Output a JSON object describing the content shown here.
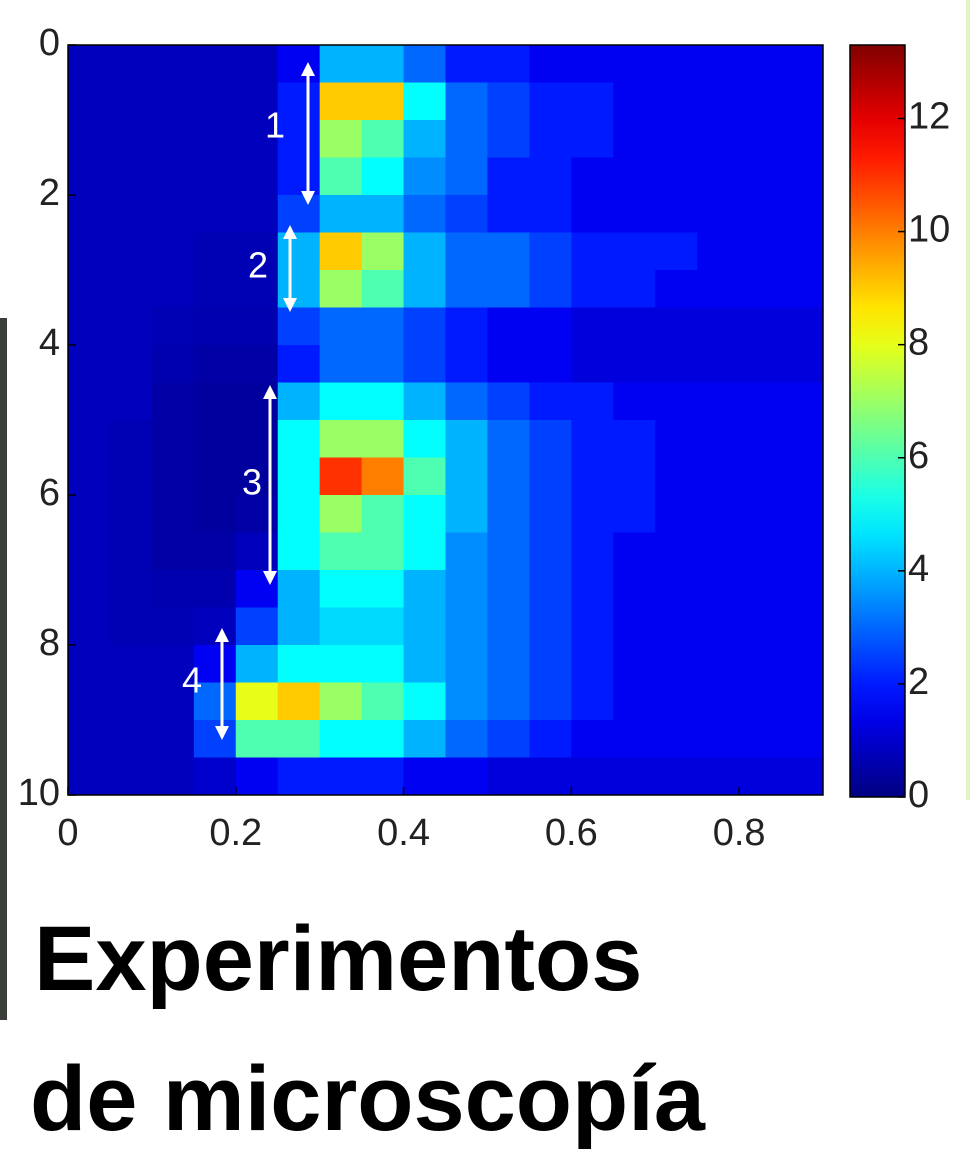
{
  "chart_data": {
    "type": "heatmap",
    "colormap": "jet",
    "x": [
      0.025,
      0.075,
      0.125,
      0.175,
      0.225,
      0.275,
      0.325,
      0.375,
      0.425,
      0.475,
      0.525,
      0.575,
      0.625,
      0.675,
      0.725,
      0.775,
      0.825,
      0.875
    ],
    "y": [
      0.25,
      0.75,
      1.25,
      1.75,
      2.25,
      2.75,
      3.25,
      3.75,
      4.25,
      4.75,
      5.25,
      5.75,
      6.25,
      6.75,
      7.25,
      7.75,
      8.25,
      8.75,
      9.25,
      9.75
    ],
    "z": [
      [
        0.8,
        0.8,
        0.8,
        0.8,
        0.8,
        1.5,
        4,
        4,
        3,
        2,
        2,
        1.5,
        1.5,
        1.5,
        1.5,
        1.5,
        1.5,
        1.5
      ],
      [
        0.8,
        0.8,
        0.8,
        0.8,
        0.8,
        2,
        9,
        9,
        5,
        3,
        2.5,
        2,
        2,
        1.5,
        1.5,
        1.5,
        1.5,
        1.5
      ],
      [
        0.8,
        0.8,
        0.8,
        0.8,
        0.8,
        2,
        7,
        6,
        4,
        3,
        2.5,
        2,
        2,
        1.5,
        1.5,
        1.5,
        1.5,
        1.5
      ],
      [
        0.8,
        0.8,
        0.8,
        0.8,
        0.8,
        2,
        6,
        5,
        3.5,
        3,
        2,
        2,
        1.5,
        1.5,
        1.5,
        1.5,
        1.5,
        1.5
      ],
      [
        0.8,
        0.8,
        0.8,
        0.8,
        0.8,
        2.5,
        4,
        4,
        3,
        2.5,
        2,
        2,
        1.5,
        1.5,
        1.5,
        1.5,
        1.5,
        1.5
      ],
      [
        0.8,
        0.8,
        0.8,
        0.7,
        0.7,
        4,
        9,
        7,
        4,
        3,
        3,
        2.5,
        2,
        2,
        2,
        1.5,
        1.5,
        1.5
      ],
      [
        0.8,
        0.8,
        0.8,
        0.7,
        0.7,
        4,
        7,
        6,
        4,
        3,
        3,
        2.5,
        2,
        2,
        1.5,
        1.5,
        1.5,
        1.5
      ],
      [
        0.8,
        0.8,
        0.7,
        0.6,
        0.6,
        2.5,
        3,
        3,
        2.5,
        2,
        1.5,
        1.5,
        1.2,
        1.2,
        1.2,
        1.2,
        1.2,
        1.2
      ],
      [
        0.8,
        0.8,
        0.6,
        0.5,
        0.5,
        2,
        3,
        3,
        2.5,
        2,
        1.5,
        1.5,
        1.2,
        1.2,
        1.2,
        1.2,
        1.2,
        1.2
      ],
      [
        0.8,
        0.8,
        0.5,
        0.4,
        0.4,
        4,
        5,
        5,
        4,
        3,
        2.5,
        2,
        2,
        1.5,
        1.5,
        1.5,
        1.5,
        1.5
      ],
      [
        0.8,
        0.7,
        0.5,
        0.4,
        0.4,
        5,
        7,
        7,
        5,
        4,
        3,
        2.5,
        2,
        2,
        1.5,
        1.5,
        1.5,
        1.5
      ],
      [
        0.8,
        0.7,
        0.5,
        0.4,
        0.4,
        5,
        11,
        10,
        6,
        4,
        3,
        2.5,
        2,
        2,
        1.5,
        1.5,
        1.5,
        1.5
      ],
      [
        0.8,
        0.7,
        0.5,
        0.4,
        0.5,
        5,
        7,
        6,
        5,
        4,
        3,
        2.5,
        2,
        2,
        1.5,
        1.5,
        1.5,
        1.5
      ],
      [
        0.8,
        0.7,
        0.5,
        0.5,
        0.8,
        5,
        6,
        6,
        5,
        3.5,
        3,
        2.5,
        2,
        1.5,
        1.5,
        1.5,
        1.5,
        1.5
      ],
      [
        0.8,
        0.7,
        0.6,
        0.6,
        1.5,
        4,
        5,
        5,
        4,
        3.5,
        3,
        2.5,
        2,
        1.5,
        1.5,
        1.5,
        1.5,
        1.5
      ],
      [
        0.8,
        0.7,
        0.7,
        0.8,
        2.5,
        4,
        4.5,
        4.5,
        4,
        3.5,
        3,
        2.5,
        2,
        1.5,
        1.5,
        1.5,
        1.5,
        1.5
      ],
      [
        0.8,
        0.8,
        0.8,
        1.5,
        4,
        5,
        5,
        5,
        4,
        3.5,
        3,
        2.5,
        2,
        1.5,
        1.5,
        1.5,
        1.5,
        1.5
      ],
      [
        0.8,
        0.8,
        0.8,
        3,
        8,
        9,
        7,
        6,
        5,
        3.5,
        3,
        2.5,
        2,
        1.5,
        1.5,
        1.5,
        1.5,
        1.5
      ],
      [
        0.8,
        0.8,
        0.8,
        2.5,
        6,
        6,
        5,
        5,
        4,
        3,
        2.5,
        2,
        1.5,
        1.5,
        1.5,
        1.5,
        1.5,
        1.5
      ],
      [
        0.8,
        0.8,
        0.8,
        1,
        1.5,
        2,
        2,
        2,
        1.5,
        1.5,
        1.2,
        1.2,
        1.2,
        1.2,
        1.2,
        1.2,
        1.2,
        1.2
      ]
    ],
    "xlim": [
      0,
      0.9
    ],
    "xticks": [
      0,
      0.2,
      0.4,
      0.6,
      0.8
    ],
    "ylim": [
      0,
      10
    ],
    "yticks": [
      0,
      2,
      4,
      6,
      8,
      10
    ],
    "y_inverted": true,
    "clim": [
      0,
      13.3
    ],
    "cticks": [
      0,
      2,
      4,
      6,
      8,
      10,
      12
    ],
    "annotations": [
      "1",
      "2",
      "3",
      "4"
    ]
  },
  "caption": [
    "Experimentos",
    "de microscopía"
  ]
}
